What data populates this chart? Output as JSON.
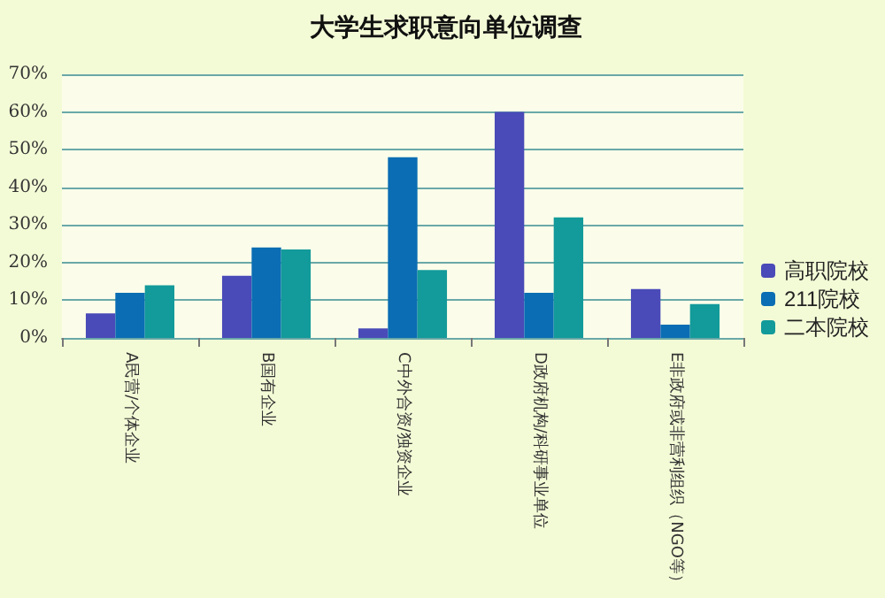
{
  "chart_data": {
    "type": "bar",
    "title": "大学生求职意向单位调查",
    "categories": [
      "A民营/个体企业",
      "B国有企业",
      "C中外合资/独资企业",
      "D政府机构/科研事业单位",
      "E非政府或非营利组织（NGO等）"
    ],
    "series": [
      {
        "name": "高职院校",
        "color": "#4a4ab8",
        "values": [
          6.5,
          16.5,
          2.5,
          60,
          13
        ]
      },
      {
        "name": "211院校",
        "color": "#0b6db3",
        "values": [
          12,
          24,
          48,
          12,
          3.5
        ]
      },
      {
        "name": "二本院校",
        "color": "#139a9a",
        "values": [
          14,
          23.5,
          18,
          32,
          9
        ]
      }
    ],
    "ylim": [
      0,
      70
    ],
    "yticks": [
      {
        "value": 0,
        "label": "0%"
      },
      {
        "value": 10,
        "label": "10%"
      },
      {
        "value": 20,
        "label": "20%"
      },
      {
        "value": 30,
        "label": "30%"
      },
      {
        "value": 40,
        "label": "40%"
      },
      {
        "value": 50,
        "label": "50%"
      },
      {
        "value": 60,
        "label": "60%"
      },
      {
        "value": 70,
        "label": "70%"
      }
    ],
    "grid": "y",
    "legend": "right"
  }
}
